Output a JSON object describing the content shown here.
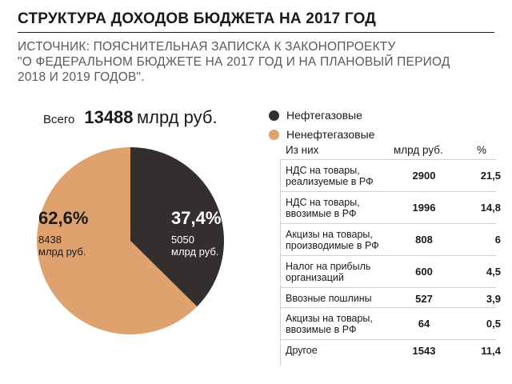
{
  "header": {
    "title": "СТРУКТУРА ДОХОДОВ БЮДЖЕТА НА 2017 ГОД",
    "source_lines": [
      "ИСТОЧНИК: ПОЯСНИТЕЛЬНАЯ ЗАПИСКА К ЗАКОНОПРОЕКТУ",
      "\"О ФЕДЕРАЛЬНОМ БЮДЖЕТЕ НА 2017 ГОД И НА ПЛАНОВЫЙ ПЕРИОД",
      "2018 И 2019 ГОДОВ\"."
    ]
  },
  "total": {
    "label": "Всего",
    "value": "13488",
    "unit": "млрд руб."
  },
  "colors": {
    "oil_gas": "#332f2e",
    "non_oil_gas": "#dfa26f"
  },
  "table": {
    "headers": {
      "name": "Из них",
      "value": "млрд руб.",
      "pct": "%"
    },
    "rows": [
      {
        "name": [
          "НДС на товары,",
          "реализуемые в РФ"
        ],
        "value": "2900",
        "pct": "21,5"
      },
      {
        "name": [
          "НДС на товары,",
          "ввозимые в РФ"
        ],
        "value": "1996",
        "pct": "14,8"
      },
      {
        "name": [
          "Акцизы на товары,",
          "производимые в РФ"
        ],
        "value": "808",
        "pct": "6"
      },
      {
        "name": [
          "Налог на прибыль",
          "организаций"
        ],
        "value": "600",
        "pct": "4,5"
      },
      {
        "name": [
          "Ввозные пошлины"
        ],
        "value": "527",
        "pct": "3,9"
      },
      {
        "name": [
          "Акцизы на товары,",
          "ввозимые в РФ"
        ],
        "value": "64",
        "pct": "0,5"
      },
      {
        "name": [
          "Другое"
        ],
        "value": "1543",
        "pct": "11,4"
      }
    ]
  },
  "chart_data": {
    "type": "pie",
    "title": "СТРУКТУРА ДОХОДОВ БЮДЖЕТА НА 2017 ГОД",
    "slices": [
      {
        "name": "Нефтегазовые",
        "percent": 37.4,
        "percent_label": "37,4%",
        "value": 5050,
        "value_label": "5050",
        "unit": "млрд руб.",
        "color": "#332f2e"
      },
      {
        "name": "Ненефтегазовые",
        "percent": 62.6,
        "percent_label": "62,6%",
        "value": 8438,
        "value_label": "8438",
        "unit": "млрд руб.",
        "color": "#dfa26f"
      }
    ],
    "legend_placement": "right"
  }
}
